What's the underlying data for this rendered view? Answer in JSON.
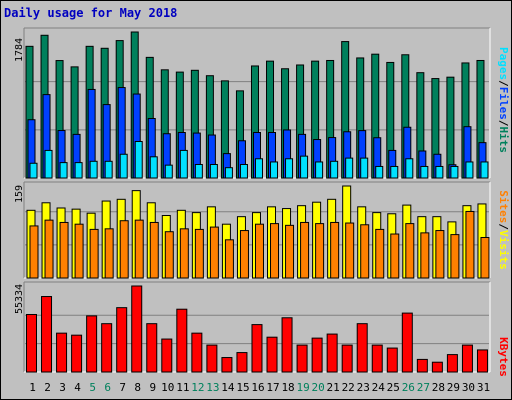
{
  "title": "Daily usage for May 2018",
  "colors": {
    "hits": "#00805c",
    "files": "#0040ff",
    "pages": "#00e0ff",
    "visits": "#ffff00",
    "sites": "#ff8000",
    "kbytes": "#ff0000",
    "weekend_day": "#00805c",
    "weekday": "#000000",
    "frame": "#c0c0c0",
    "panel": "#c0c0c0"
  },
  "chart_data": [
    {
      "type": "bar",
      "name": "hits-files-pages",
      "categories": [
        "1",
        "2",
        "3",
        "4",
        "5",
        "6",
        "7",
        "8",
        "9",
        "10",
        "11",
        "12",
        "13",
        "14",
        "15",
        "16",
        "17",
        "18",
        "19",
        "20",
        "21",
        "22",
        "23",
        "24",
        "25",
        "26",
        "27",
        "28",
        "29",
        "30",
        "31"
      ],
      "y_max_label": "1784",
      "ylim": [
        0,
        1784
      ],
      "legend": [
        "Pages",
        "Files",
        "Hits"
      ],
      "legend_position": "right",
      "series": [
        {
          "name": "Hits",
          "values": [
            1609,
            1744,
            1435,
            1358,
            1609,
            1585,
            1679,
            1784,
            1474,
            1322,
            1294,
            1316,
            1250,
            1187,
            1065,
            1369,
            1428,
            1335,
            1381,
            1428,
            1436,
            1667,
            1467,
            1513,
            1412,
            1506,
            1287,
            1215,
            1232,
            1406,
            1436
          ]
        },
        {
          "name": "Files",
          "values": [
            712,
            1019,
            580,
            533,
            1082,
            897,
            1105,
            1026,
            727,
            541,
            556,
            549,
            525,
            298,
            455,
            556,
            556,
            587,
            533,
            470,
            494,
            565,
            579,
            492,
            337,
            620,
            330,
            290,
            162,
            627,
            432
          ]
        },
        {
          "name": "Pages",
          "values": [
            180,
            337,
            188,
            188,
            204,
            204,
            290,
            446,
            259,
            157,
            337,
            165,
            165,
            126,
            165,
            235,
            196,
            235,
            267,
            196,
            204,
            243,
            243,
            141,
            141,
            235,
            141,
            141,
            141,
            196,
            196
          ]
        }
      ]
    },
    {
      "type": "bar",
      "name": "visits-sites",
      "y_max_label": "159",
      "ylim": [
        0,
        159
      ],
      "legend": [
        "Sites",
        "Visits"
      ],
      "legend_position": "right",
      "series": [
        {
          "name": "Visits",
          "values": [
            117,
            130,
            121,
            119,
            112,
            133,
            136,
            151,
            130,
            108,
            117,
            113,
            123,
            93,
            106,
            113,
            123,
            120,
            125,
            131,
            136,
            159,
            123,
            113,
            111,
            126,
            106,
            106,
            97,
            125,
            128
          ]
        },
        {
          "name": "Sites",
          "values": [
            90,
            100,
            96,
            93,
            84,
            85,
            99,
            100,
            96,
            80,
            85,
            84,
            88,
            66,
            82,
            93,
            94,
            91,
            96,
            94,
            96,
            95,
            92,
            84,
            76,
            94,
            78,
            82,
            75,
            115,
            70
          ]
        }
      ]
    },
    {
      "type": "bar",
      "name": "kbytes",
      "y_max_label": "55334",
      "ylim": [
        0,
        55334
      ],
      "legend": [
        "KBytes"
      ],
      "legend_position": "right",
      "series": [
        {
          "name": "KBytes",
          "values": [
            37000,
            48560,
            25000,
            23700,
            36100,
            31100,
            41400,
            55334,
            31100,
            21200,
            40400,
            25000,
            17300,
            9300,
            12500,
            30500,
            22400,
            34900,
            17300,
            21800,
            24400,
            17300,
            31100,
            17300,
            15400,
            37900,
            8100,
            6300,
            11200,
            17300,
            14200
          ]
        }
      ]
    }
  ],
  "x_axis": {
    "labels": [
      "1",
      "2",
      "3",
      "4",
      "5",
      "6",
      "7",
      "8",
      "9",
      "10",
      "11",
      "12",
      "13",
      "14",
      "15",
      "16",
      "17",
      "18",
      "19",
      "20",
      "21",
      "22",
      "23",
      "24",
      "25",
      "26",
      "27",
      "28",
      "29",
      "30",
      "31"
    ],
    "weekend": [
      false,
      false,
      false,
      false,
      true,
      true,
      false,
      false,
      false,
      false,
      false,
      true,
      true,
      false,
      false,
      false,
      false,
      false,
      true,
      true,
      false,
      false,
      false,
      false,
      false,
      true,
      true,
      false,
      false,
      false,
      false
    ]
  }
}
